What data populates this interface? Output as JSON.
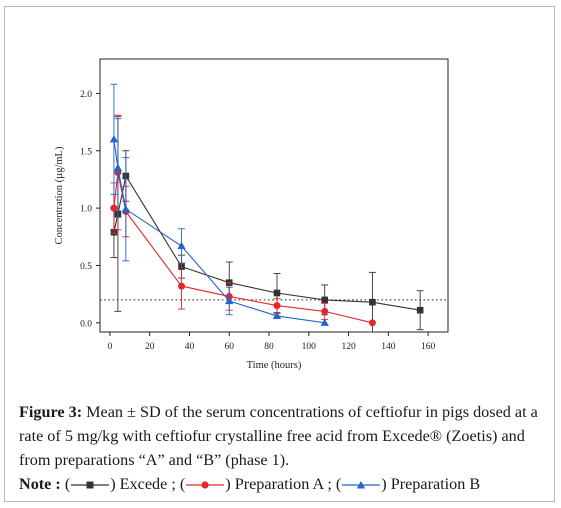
{
  "chart_data": {
    "type": "line",
    "xlabel": "Time (hours)",
    "ylabel": "Concentration (µg/mL)",
    "xlim": [
      -5,
      170
    ],
    "ylim": [
      -0.08,
      2.3
    ],
    "xticks": [
      0,
      20,
      40,
      60,
      80,
      100,
      120,
      140,
      160
    ],
    "xtick_labels": [
      "0",
      "20",
      "40",
      "60",
      "80",
      "100",
      "120",
      "140",
      "160"
    ],
    "yticks": [
      0.0,
      0.5,
      1.0,
      1.5,
      2.0
    ],
    "ytick_labels": [
      "0.0",
      "0.5",
      "1.0",
      "1.5",
      "2.0"
    ],
    "reference_line": {
      "y": 0.2,
      "style": "dotted"
    },
    "grid": false,
    "series": [
      {
        "name": "Excede",
        "color": "#333333",
        "marker": "square",
        "x": [
          2,
          4,
          8,
          36,
          60,
          84,
          108,
          132,
          156
        ],
        "y": [
          0.79,
          0.95,
          1.28,
          0.49,
          0.35,
          0.26,
          0.2,
          0.18,
          0.11
        ],
        "err": [
          0.22,
          0.85,
          0.22,
          0.1,
          0.18,
          0.17,
          0.13,
          0.26,
          0.17
        ]
      },
      {
        "name": "Preparation A",
        "color": "#e3262b",
        "marker": "circle",
        "x": [
          2,
          4,
          8,
          36,
          60,
          84,
          108,
          132
        ],
        "y": [
          1.0,
          1.31,
          0.97,
          0.32,
          0.23,
          0.15,
          0.1,
          0.0
        ],
        "err": [
          0.22,
          0.5,
          0.22,
          0.2,
          0.12,
          0.06,
          0.07,
          0.0
        ]
      },
      {
        "name": "Preparation B",
        "color": "#2266cc",
        "marker": "triangle",
        "x": [
          2,
          4,
          8,
          36,
          60,
          84,
          108
        ],
        "y": [
          1.6,
          1.35,
          0.99,
          0.67,
          0.19,
          0.06,
          0.0
        ],
        "err": [
          0.48,
          0.43,
          0.45,
          0.15,
          0.12,
          0.02,
          0.0
        ]
      }
    ]
  },
  "caption": {
    "label": "Figure 3:",
    "text": " Mean ± SD of the serum concentrations of ceftiofur in pigs dosed at a rate of 5 mg/kg with ceftiofur crystalline free acid from Excede® (Zoetis) and from preparations “A” and “B” (phase 1).",
    "note_label": "Note :",
    "note_parts": [
      " (",
      ") Excede ; (",
      ") Preparation A ; (",
      ") Preparation B"
    ]
  }
}
